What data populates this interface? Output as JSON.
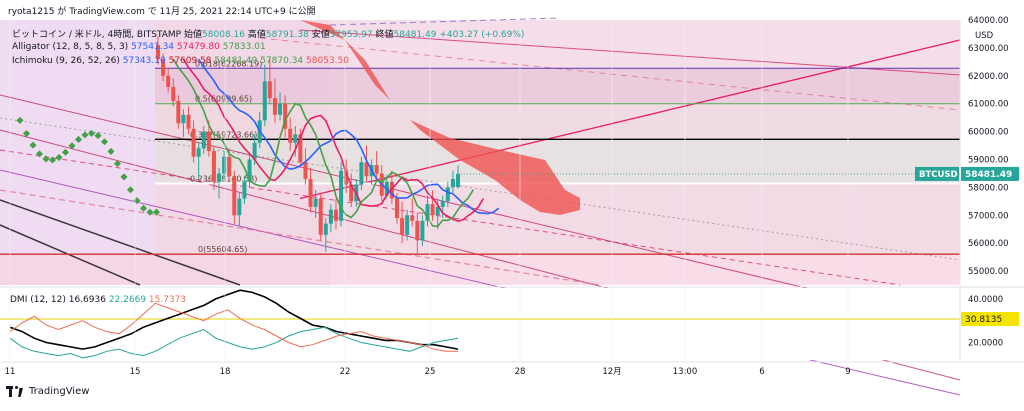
{
  "header": {
    "publisher": "ryota1215 が TradingView.com で 11月 25, 2021 22:14 UTC+9 に公開",
    "symbol_line": "ビットコイン / 米ドル, 4時間, BITSTAMP",
    "open_label": "始値",
    "open_value": "58008.16",
    "high_label": "高値",
    "high_value": "58791.38",
    "low_label": "安値",
    "low_value": "57953.97",
    "close_label": "終値",
    "close_value": "58481.49",
    "change": "+403.27 (+0.69%)",
    "alligator_label": "Alligator (12, 8, 5, 8, 5, 3)",
    "alligator_values": [
      "57541.34",
      "57479.80",
      "57833.01"
    ],
    "ichimoku_label": "Ichimoku (9, 26, 52, 26)",
    "ichimoku_values": [
      "57343.10",
      "57609.58",
      "58481.49",
      "57870.34",
      "58053.50"
    ]
  },
  "colors": {
    "up_candle": "#26a69a",
    "down_candle": "#ef5350",
    "alligator_jaw": "#2962ff",
    "alligator_teeth": "#e91e63",
    "alligator_lips": "#43a047",
    "kumo_bear": "#ef5350",
    "kumo_bull": "#66bb6a",
    "fib_bg_top": "#f3d6e4",
    "channel": "#c2185b",
    "dmi_adx": "#000000",
    "dmi_plus": "#26a69a",
    "dmi_minus": "#ef6c50",
    "last_price_tag": "#26a69a",
    "dmi_tag": "#f5e400"
  },
  "chart_data": [
    {
      "type": "candlestick",
      "symbol": "BTCUSD",
      "currency_label": "USD",
      "timeframe": "4時間",
      "x_tick_labels": [
        "11",
        "15",
        "18",
        "22",
        "25",
        "28",
        "12月",
        "13:00",
        "6",
        "9"
      ],
      "y_tick_labels": [
        "55000.00",
        "56000.00",
        "57000.00",
        "58000.00",
        "59000.00",
        "60000.00",
        "61000.00",
        "62000.00",
        "63000.00",
        "64000.00"
      ],
      "ylim": [
        54500,
        64000
      ],
      "last_price": 58481.49,
      "last_price_label": "58481.49",
      "fib_levels": [
        {
          "ratio_label": "0(55604.65)",
          "price": 55604.65
        },
        {
          "ratio_label": "0.236(58140.58)",
          "price": 58140.58
        },
        {
          "ratio_label": "0.382(59723.66)",
          "price": 59723.66
        },
        {
          "ratio_label": "0.5(60999.65)",
          "price": 60999.65
        },
        {
          "ratio_label": "0.618(62268.19)",
          "price": 62268.19
        }
      ],
      "candles": [
        [
          63100,
          63400,
          62400,
          62600
        ],
        [
          62600,
          62800,
          61800,
          62000
        ],
        [
          62000,
          62300,
          61400,
          61600
        ],
        [
          61600,
          61900,
          60900,
          61100
        ],
        [
          61100,
          61300,
          60100,
          60300
        ],
        [
          60300,
          60800,
          59800,
          60600
        ],
        [
          60600,
          60900,
          59900,
          60100
        ],
        [
          60100,
          60400,
          58900,
          59100
        ],
        [
          59100,
          59600,
          58300,
          59400
        ],
        [
          59400,
          60200,
          59200,
          60000
        ],
        [
          60000,
          60400,
          59100,
          59300
        ],
        [
          59300,
          59500,
          57900,
          58200
        ],
        [
          58200,
          58700,
          57600,
          58500
        ],
        [
          58500,
          59300,
          58300,
          59100
        ],
        [
          59100,
          59400,
          58200,
          58400
        ],
        [
          58400,
          58600,
          56700,
          57000
        ],
        [
          57000,
          57800,
          56600,
          57600
        ],
        [
          57600,
          58400,
          57400,
          58200
        ],
        [
          58200,
          59200,
          58000,
          59000
        ],
        [
          59000,
          59900,
          58800,
          59600
        ],
        [
          59600,
          60700,
          59400,
          60400
        ],
        [
          60400,
          62400,
          60200,
          61800
        ],
        [
          61800,
          62600,
          61000,
          61200
        ],
        [
          61200,
          61900,
          60300,
          60600
        ],
        [
          60600,
          61400,
          60400,
          61000
        ],
        [
          61000,
          61300,
          59800,
          60100
        ],
        [
          60100,
          60500,
          59300,
          59600
        ],
        [
          59600,
          60200,
          59100,
          59900
        ],
        [
          59900,
          60100,
          58700,
          58900
        ],
        [
          58900,
          59400,
          58100,
          58300
        ],
        [
          58300,
          58700,
          57100,
          57300
        ],
        [
          57300,
          57900,
          56900,
          57600
        ],
        [
          57600,
          57800,
          56100,
          56300
        ],
        [
          56300,
          56900,
          55700,
          56700
        ],
        [
          56700,
          57400,
          56400,
          57200
        ],
        [
          57200,
          57600,
          56500,
          56800
        ],
        [
          56800,
          58900,
          56600,
          58600
        ],
        [
          58600,
          59000,
          57800,
          58100
        ],
        [
          58100,
          58500,
          57300,
          57500
        ],
        [
          57500,
          58300,
          57300,
          58100
        ],
        [
          58100,
          59100,
          57900,
          58900
        ],
        [
          58900,
          59500,
          58200,
          58400
        ],
        [
          58400,
          59000,
          58100,
          58800
        ],
        [
          58800,
          59300,
          58200,
          58500
        ],
        [
          58500,
          58800,
          57500,
          57700
        ],
        [
          57700,
          58400,
          57600,
          58200
        ],
        [
          58200,
          58600,
          57400,
          57600
        ],
        [
          57600,
          57800,
          56700,
          56900
        ],
        [
          56900,
          57500,
          56000,
          56300
        ],
        [
          56300,
          57200,
          56100,
          57000
        ],
        [
          57000,
          57600,
          56600,
          56800
        ],
        [
          56800,
          57100,
          55600,
          56100
        ],
        [
          56100,
          57000,
          55900,
          56800
        ],
        [
          56800,
          57700,
          56600,
          57400
        ],
        [
          57400,
          57900,
          56800,
          57000
        ],
        [
          57000,
          57600,
          56500,
          57300
        ],
        [
          57300,
          57700,
          56900,
          57500
        ],
        [
          57500,
          58200,
          57300,
          58000
        ],
        [
          58000,
          58600,
          57800,
          58300
        ],
        [
          58008.16,
          58791.38,
          57953.97,
          58481.49
        ]
      ]
    },
    {
      "type": "line",
      "name": "DMI",
      "label": "DMI (12, 12)",
      "legend_values": [
        "16.6936",
        "22.2669",
        "15.7373"
      ],
      "y_tick_labels": [
        "20.0000",
        "30.0000",
        "40.0000"
      ],
      "ylim": [
        12,
        45
      ],
      "threshold": 30.8135,
      "threshold_label": "30.8135",
      "series": [
        {
          "values": [
            27,
            25,
            22,
            20,
            19,
            18,
            17,
            18,
            20,
            22,
            24,
            27,
            29,
            31,
            33,
            35,
            37,
            40,
            42,
            44,
            43,
            41,
            38,
            34,
            31,
            28,
            27,
            25,
            24,
            23,
            22,
            21,
            21,
            20,
            19,
            19,
            18,
            17
          ]
        },
        {
          "values": [
            22,
            18,
            16,
            15,
            14,
            15,
            13,
            14,
            16,
            17,
            15,
            14,
            16,
            19,
            22,
            24,
            26,
            22,
            20,
            18,
            17,
            18,
            20,
            23,
            25,
            26,
            27,
            24,
            22,
            20,
            19,
            18,
            17,
            16,
            18,
            20,
            21,
            22
          ]
        },
        {
          "values": [
            25,
            29,
            32,
            28,
            26,
            28,
            30,
            27,
            25,
            24,
            28,
            33,
            38,
            36,
            34,
            32,
            30,
            33,
            35,
            31,
            28,
            26,
            23,
            20,
            18,
            19,
            21,
            23,
            24,
            25,
            23,
            22,
            21,
            20,
            19,
            17,
            16,
            16
          ]
        }
      ]
    }
  ]
}
